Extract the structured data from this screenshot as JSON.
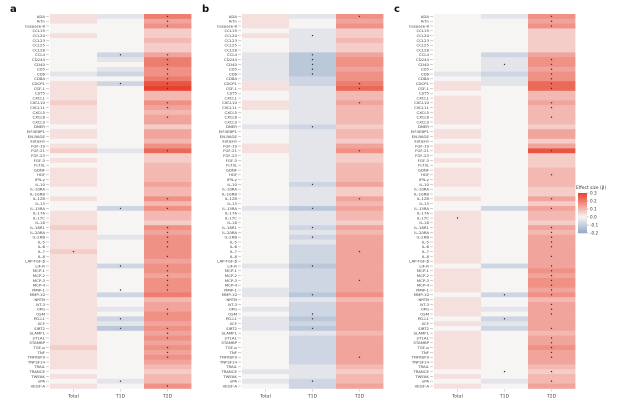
{
  "chart_data": {
    "type": "heatmap",
    "rows": [
      "ADA",
      "Artn",
      "Caspase-8",
      "CCL19",
      "CCL20",
      "CCL23",
      "CCL25",
      "CCL28",
      "CCL4",
      "CD244",
      "CD40",
      "CD5",
      "CD6",
      "CD8A",
      "CDCP1",
      "CSF-1",
      "CST5",
      "CXCL1",
      "CXCL10",
      "CXCL11",
      "CXCL5",
      "CXCL6",
      "CXCL9",
      "DNER",
      "EIF4EBP1",
      "EN-RAGE",
      "Eotaxin",
      "FGF-19",
      "FGF-21",
      "FGF-23",
      "FGF-5",
      "FLT3L",
      "GDNF",
      "HGF",
      "IFN-γ",
      "IL-10",
      "IL-10RA",
      "IL-10RB",
      "IL-12B",
      "IL-13",
      "IL-15RA",
      "IL-17A",
      "IL-17C",
      "IL-18",
      "IL-18R1",
      "IL-20RA",
      "IL-2RB",
      "IL-5",
      "IL-6",
      "IL-7",
      "IL-8",
      "LAP-TGF-β",
      "LIF-R",
      "MCP-1",
      "MCP-2",
      "MCP-3",
      "MCP-4",
      "MMP-1",
      "MMP-10",
      "NRTN",
      "NT-3",
      "OPG",
      "OSM",
      "PD-L1",
      "SCF",
      "SIRT2",
      "SLAMF1",
      "ST1A1",
      "STAMBP",
      "TGF-α",
      "TNF",
      "TNFRSF9",
      "TNFSF14",
      "TRAIL",
      "TRANCE",
      "TWEAK",
      "uPA",
      "VEGF-A"
    ],
    "series": [
      "Total",
      "T1D",
      "T2D"
    ],
    "panels": [
      {
        "label": "a",
        "values": [
          "1 -1 6",
          "1 0 4",
          "0 0 5",
          "0 0 2",
          "1 0 2",
          "0 0 3",
          "0 0 2",
          "0 0 2",
          "0 -2 4",
          "0 -1 6",
          "0 0 6",
          "0 -1 5",
          "-1 -2 5",
          "0 0 6",
          "1 -2 8",
          "1 0 9",
          "1 0 3",
          "1 0 3",
          "2 0 5",
          "1 0 4",
          "1 0 3",
          "1 0 4",
          "1 0 4",
          "0 0 2",
          "1 0 4",
          "1 0 4",
          "0 0 3",
          "1 0 5",
          "2 -1 7",
          "0 0 2",
          "1 0 2",
          "0 0 3",
          "1 0 3",
          "1 0 3",
          "1 0 3",
          "1 0 4",
          "0 0 3",
          "0 0 3",
          "1 0 5",
          "0 0 3",
          "0 -2 5",
          "1 0 3",
          "1 0 3",
          "1 0 2",
          "2 0 5",
          "1 0 4",
          "1 -1 5",
          "1 0 5",
          "1 0 5",
          "2 0 5",
          "1 0 5",
          "1 0 4",
          "1 -2 5",
          "1 0 5",
          "1 0 4",
          "1 0 5",
          "1 0 5",
          "1 0 5",
          "1 -2 6",
          "1 0 3",
          "1 0 4",
          "1 -1 4",
          "1 0 5",
          "1 -2 5",
          "1 -1 4",
          "1 -3 5",
          "1 0 4",
          "1 0 5",
          "1 0 4",
          "2 0 5",
          "1 0 4",
          "1 0 5",
          "1 0 4",
          "1 0 3",
          "0 0 2",
          "1 0 3",
          "0 -1 3",
          "1 0 5"
        ],
        "significant": [
          "0 2",
          "1 2",
          "2 2",
          "8 1",
          "8 2",
          "9 2",
          "10 2",
          "11 2",
          "12 2",
          "13 2",
          "14 1",
          "14 2",
          "15 2",
          "18 2",
          "19 2",
          "21 2",
          "28 2",
          "38 2",
          "40 1",
          "40 2",
          "44 2",
          "45 2",
          "46 2",
          "47 2",
          "48 2",
          "49 0",
          "50 2",
          "52 1",
          "52 2",
          "53 2",
          "54 2",
          "55 2",
          "56 2",
          "57 1",
          "57 2",
          "61 2",
          "62 2",
          "63 1",
          "65 1",
          "65 2",
          "66 2",
          "67 2",
          "69 2",
          "70 2",
          "71 2",
          "76 1",
          "77 2"
        ]
      },
      {
        "label": "b",
        "values": [
          "1 -1 5",
          "1 0 4",
          "1 0 5",
          "0 -1 2",
          "1 -1 2",
          "0 -1 3",
          "0 -1 2",
          "0 -1 2",
          "-1 -3 4",
          "-1 -3 5",
          "-1 -3 5",
          "-1 -3 4",
          "-1 -3 5",
          "-1 -2 5",
          "1 -2 6",
          "1 -1 7",
          "0 -1 3",
          "0 -1 3",
          "1 -1 4",
          "1 -1 3",
          "0 -1 3",
          "0 -1 3",
          "0 -1 3",
          "-1 -2 2",
          "0 -1 3",
          "0 -1 3",
          "0 -1 2",
          "1 -1 4",
          "1 -1 5",
          "0 -1 2",
          "0 -1 2",
          "0 -1 3",
          "0 -1 3",
          "0 -1 3",
          "0 -1 3",
          "0 -2 4",
          "0 -1 2",
          "0 -1 2",
          "0 -1 4",
          "0 -1 3",
          "-1 -3 4",
          "0 -1 3",
          "0 -1 3",
          "0 -1 2",
          "0 -2 4",
          "0 -1 3",
          "0 -2 4",
          "0 -1 4",
          "0 -2 4",
          "0 -2 4",
          "0 -2 4",
          "0 -2 4",
          "-1 -3 4",
          "0 -2 4",
          "0 -2 4",
          "0 -2 4",
          "0 -2 4",
          "-1 -2 4",
          "-1 -3 5",
          "0 -1 3",
          "0 -2 4",
          "-1 -2 4",
          "0 -2 4",
          "-1 -3 4",
          "-1 -2 4",
          "-1 -3 4",
          "0 -1 3",
          "0 -2 4",
          "0 -2 4",
          "0 -2 4",
          "0 -2 4",
          "0 -2 4",
          "0 -2 4",
          "0 -1 3",
          "-1 -1 2",
          "0 -1 3",
          "-1 -2 3",
          "0 -2 4"
        ],
        "significant": [
          "0 2",
          "4 1",
          "8 1",
          "9 1",
          "10 1",
          "11 1",
          "12 1",
          "14 2",
          "15 2",
          "18 2",
          "23 1",
          "28 2",
          "35 1",
          "38 2",
          "40 1",
          "44 1",
          "46 1",
          "49 2",
          "52 1",
          "55 2",
          "58 1",
          "62 1",
          "63 1",
          "65 1",
          "71 2",
          "76 1"
        ]
      },
      {
        "label": "c",
        "values": [
          "0 -1 5",
          "0 0 4",
          "0 0 5",
          "0 0 2",
          "0 0 2",
          "0 0 2",
          "0 0 2",
          "0 0 2",
          "0 -2 4",
          "0 -1 5",
          "0 -1 5",
          "0 -1 4",
          "-1 -2 5",
          "0 -1 5",
          "1 -1 7",
          "1 0 7",
          "0 0 3",
          "1 0 3",
          "1 0 4",
          "1 0 3",
          "1 0 3",
          "1 0 3",
          "1 0 3",
          "0 0 2",
          "1 0 4",
          "1 0 4",
          "0 0 2",
          "1 0 4",
          "1 0 8",
          "0 0 2",
          "1 0 2",
          "0 0 2",
          "1 0 3",
          "1 0 3",
          "1 0 3",
          "1 0 3",
          "0 0 2",
          "0 0 2",
          "1 0 4",
          "0 0 2",
          "0 -2 4",
          "1 0 3",
          "1 0 3",
          "1 0 2",
          "1 0 4",
          "1 0 3",
          "1 0 4",
          "1 0 4",
          "1 0 4",
          "1 0 4",
          "1 0 4",
          "1 0 4",
          "0 -2 4",
          "1 0 5",
          "1 0 4",
          "1 0 5",
          "1 0 5",
          "1 0 4",
          "0 -2 5",
          "1 0 3",
          "1 0 4",
          "1 -1 4",
          "1 0 4",
          "0 -2 4",
          "1 -1 4",
          "0 -2 4",
          "1 0 3",
          "1 0 4",
          "1 0 4",
          "1 0 5",
          "1 0 4",
          "1 0 4",
          "1 0 4",
          "1 0 3",
          "0 0 2",
          "1 0 3",
          "0 -1 3",
          "1 0 4"
        ],
        "significant": [
          "0 2",
          "1 2",
          "2 2",
          "9 2",
          "10 1",
          "10 2",
          "11 2",
          "12 2",
          "13 2",
          "14 2",
          "15 2",
          "18 2",
          "19 2",
          "21 2",
          "28 2",
          "33 2",
          "38 2",
          "40 2",
          "42 0",
          "44 2",
          "45 2",
          "46 2",
          "47 2",
          "48 2",
          "50 2",
          "52 2",
          "53 2",
          "54 2",
          "55 2",
          "56 2",
          "57 2",
          "58 1",
          "58 2",
          "60 2",
          "61 2",
          "62 2",
          "63 1",
          "65 2",
          "67 2",
          "68 2",
          "69 2",
          "70 2",
          "71 2",
          "74 1",
          "74 2",
          "76 2"
        ]
      }
    ],
    "legend": {
      "title": "Effect size (β)",
      "ticks": [
        "0.3",
        "0.2",
        "0.1",
        "0.0",
        "-0.1",
        "-0.2"
      ],
      "placement": "right"
    }
  },
  "colors": {
    "strong_positive": "#e8412c",
    "zero": "#f7f4f4",
    "strong_negative": "#93aac9"
  }
}
